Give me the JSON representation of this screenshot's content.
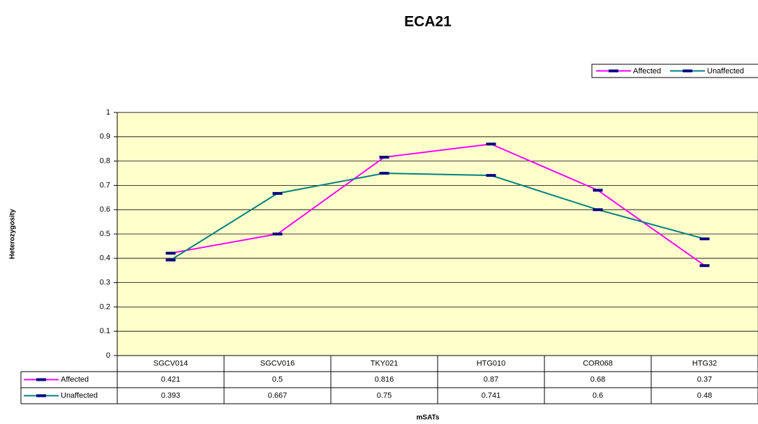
{
  "chart_data": {
    "type": "line",
    "title": "ECA21",
    "x_label": "mSATs",
    "y_label": "Heterozygosity",
    "categories": [
      "SGCV014",
      "SGCV016",
      "TKY021",
      "HTG010",
      "COR068",
      "HTG32"
    ],
    "series": [
      {
        "name": "Affected",
        "color": "#ff00ff",
        "values": [
          0.421,
          0.5,
          0.816,
          0.87,
          0.68,
          0.37
        ]
      },
      {
        "name": "Unaffected",
        "color": "#008080",
        "values": [
          0.393,
          0.667,
          0.75,
          0.741,
          0.6,
          0.48
        ]
      }
    ],
    "ylim": [
      0,
      1
    ],
    "yticks": [
      0,
      0.1,
      0.2,
      0.3,
      0.4,
      0.5,
      0.6,
      0.7,
      0.8,
      0.9,
      1
    ],
    "grid": true,
    "legend": "top-right",
    "marker_color": "#000080",
    "plot_background": "#ffffcc"
  }
}
